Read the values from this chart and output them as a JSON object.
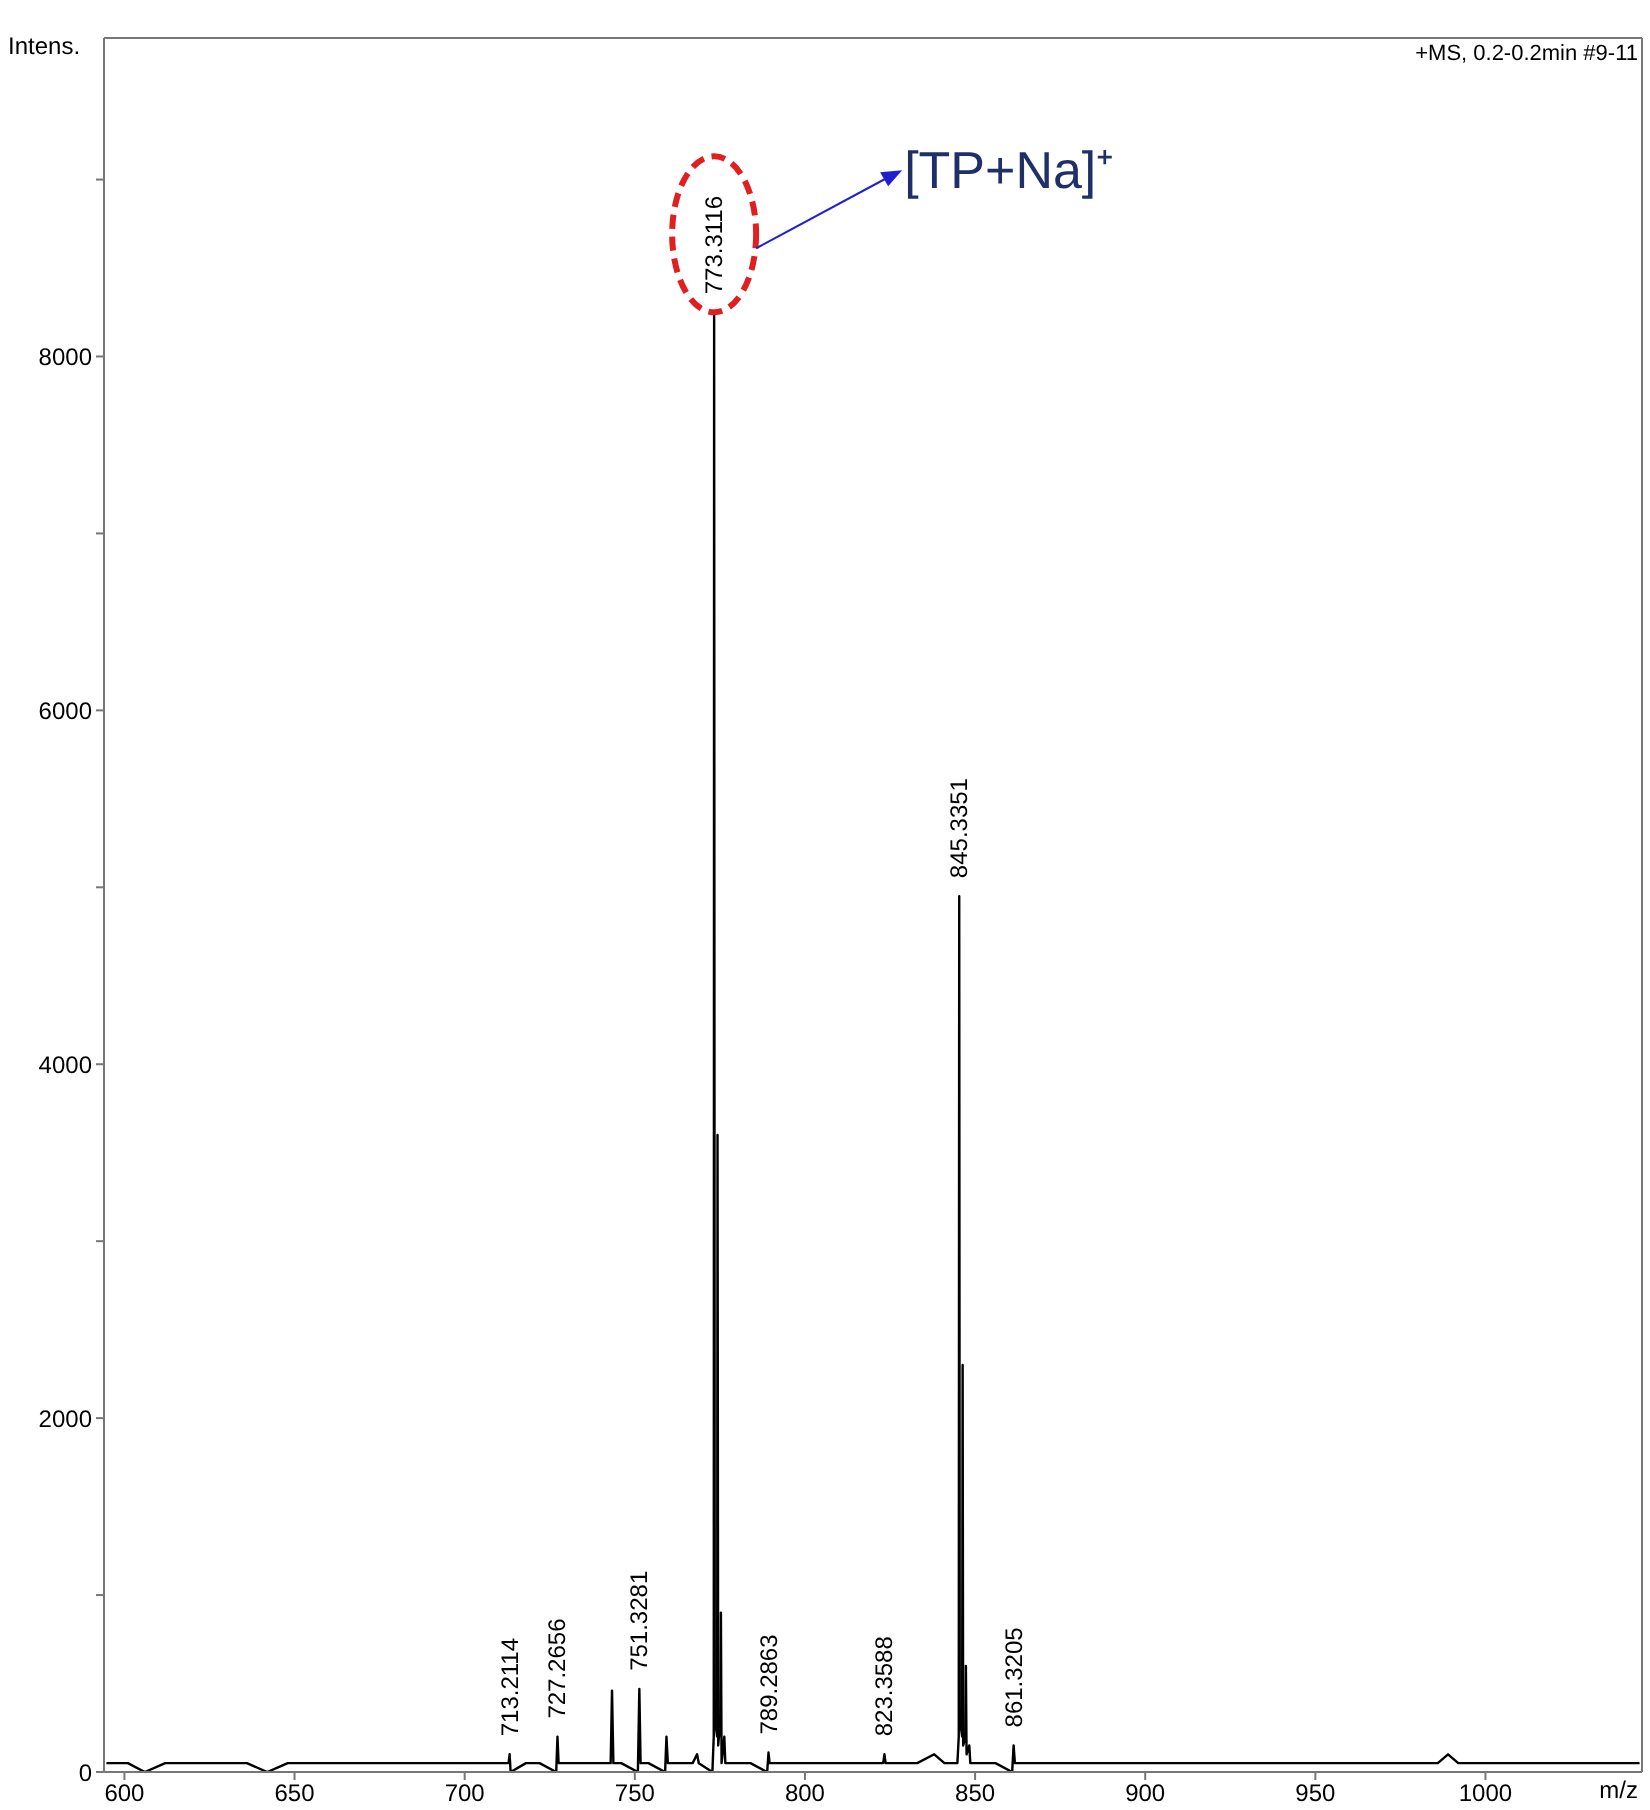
{
  "chart_data": {
    "type": "line",
    "ylabel": "Intens.",
    "xlabel": "m/z",
    "color": "#000000",
    "marker": "none",
    "xlim": [
      594,
      1046
    ],
    "xticks": [
      600,
      650,
      700,
      750,
      800,
      850,
      900,
      950,
      1000
    ],
    "ylim": [
      0,
      9800
    ],
    "yticks": [
      0,
      {
        "value": 1000,
        "label": null
      },
      2000,
      {
        "value": 3000,
        "label": null
      },
      4000,
      {
        "value": 5000,
        "label": null
      },
      6000,
      {
        "value": 7000,
        "label": null
      },
      8000,
      {
        "value": 9000,
        "label": null
      }
    ],
    "x": [
      595,
      601,
      606,
      612,
      618,
      624,
      630,
      636,
      642,
      648,
      654,
      660,
      666,
      672,
      678,
      684,
      690,
      696,
      702,
      708,
      712.9,
      713.21,
      713.5,
      718,
      722,
      726.9,
      727.27,
      727.6,
      732,
      736,
      740,
      742.9,
      743.3,
      743.7,
      746,
      750.9,
      751.33,
      751.7,
      754,
      758.9,
      759.3,
      759.7,
      763,
      767,
      768.3,
      768.8,
      772.8,
      773.2,
      773.31,
      773.5,
      774.2,
      774.31,
      774.5,
      775.2,
      775.3,
      775.5,
      776.3,
      776.6,
      780,
      784,
      788.9,
      789.29,
      789.6,
      794,
      798,
      803,
      808,
      813,
      818,
      823,
      823.36,
      823.7,
      828,
      833,
      838,
      841,
      844.8,
      845.2,
      845.34,
      845.5,
      846.2,
      846.34,
      846.5,
      847.2,
      847.3,
      847.5,
      848.3,
      848.6,
      852,
      856,
      860.9,
      861.32,
      861.7,
      866,
      872,
      878,
      884,
      890,
      896,
      902,
      908,
      914,
      920,
      926,
      932,
      938,
      944,
      950,
      956,
      962,
      968,
      974,
      980,
      986,
      989,
      992,
      998,
      1004,
      1010,
      1016,
      1022,
      1028,
      1034,
      1040,
      1045
    ],
    "values": [
      50,
      50,
      0,
      50,
      50,
      50,
      50,
      50,
      0,
      50,
      50,
      50,
      50,
      50,
      50,
      50,
      50,
      50,
      50,
      50,
      50,
      100,
      0,
      50,
      50,
      0,
      200,
      50,
      50,
      50,
      50,
      50,
      460,
      50,
      50,
      0,
      470,
      50,
      50,
      0,
      200,
      50,
      50,
      50,
      100,
      50,
      0,
      200,
      8250,
      300,
      200,
      3600,
      150,
      300,
      900,
      50,
      200,
      50,
      50,
      50,
      0,
      110,
      50,
      50,
      50,
      50,
      50,
      50,
      50,
      50,
      100,
      50,
      50,
      50,
      100,
      50,
      50,
      200,
      4950,
      300,
      200,
      2300,
      150,
      200,
      600,
      100,
      150,
      50,
      50,
      50,
      0,
      150,
      50,
      50,
      50,
      50,
      50,
      50,
      50,
      50,
      50,
      50,
      50,
      50,
      50,
      50,
      50,
      50,
      50,
      50,
      50,
      50,
      50,
      50,
      100,
      50,
      50,
      50,
      50,
      50,
      50,
      50,
      50,
      50,
      50
    ],
    "annotations": [
      {
        "text": "713.2114",
        "x": 713.21,
        "y": 100
      },
      {
        "text": "727.2656",
        "x": 727.27,
        "y": 200
      },
      {
        "text": "751.3281",
        "x": 751.33,
        "y": 470
      },
      {
        "text": "773.3116",
        "x": 773.31,
        "y": 8250
      },
      {
        "text": "789.2863",
        "x": 789.29,
        "y": 110
      },
      {
        "text": "823.3588",
        "x": 823.36,
        "y": 100
      },
      {
        "text": "845.3351",
        "x": 845.34,
        "y": 4950
      },
      {
        "text": "861.3205",
        "x": 861.32,
        "y": 150
      },
      "+MS, 0.2-0.2min #9-11",
      "[TP+Na]⁺"
    ]
  }
}
